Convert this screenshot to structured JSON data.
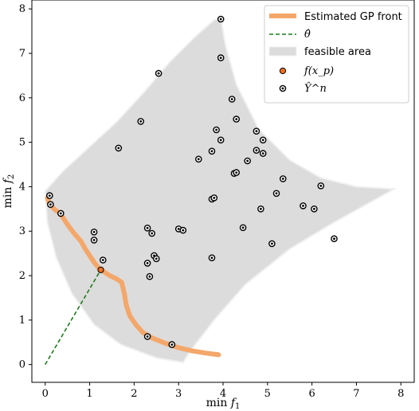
{
  "chart_data": {
    "type": "scatter",
    "xlabel": "min f_1",
    "ylabel": "min f_2",
    "xlim": [
      -0.3,
      8.3
    ],
    "ylim": [
      -0.4,
      8.2
    ],
    "x_ticks": [
      "0",
      "1",
      "2",
      "3",
      "4",
      "5",
      "6",
      "7",
      "8"
    ],
    "y_ticks": [
      "0",
      "1",
      "2",
      "3",
      "4",
      "5",
      "6",
      "7",
      "8"
    ],
    "grid": false,
    "legend_position": "top-right",
    "legend": {
      "gp_front": "Estimated GP front",
      "theta_hat": "θ̂",
      "feasible": "feasible area",
      "f_xp": "f(x_p)",
      "y_hat_n": "Ŷ^n"
    },
    "colors": {
      "gp_front": "#f4a76a",
      "theta_hat": "#1f7a1f",
      "feasible": "#dcdcdc",
      "feasible_edge": "#f0f0f0",
      "f_xp_fill": "#f07020",
      "points": "#000000"
    },
    "feasible_area": [
      [
        0.0,
        3.9
      ],
      [
        0.4,
        4.35
      ],
      [
        1.0,
        4.9
      ],
      [
        1.6,
        5.45
      ],
      [
        2.2,
        6.1
      ],
      [
        2.8,
        6.8
      ],
      [
        3.4,
        7.4
      ],
      [
        3.8,
        7.75
      ],
      [
        3.95,
        7.8
      ],
      [
        4.05,
        7.2
      ],
      [
        4.3,
        6.3
      ],
      [
        4.8,
        5.3
      ],
      [
        5.5,
        4.6
      ],
      [
        6.2,
        4.2
      ],
      [
        7.0,
        4.0
      ],
      [
        7.85,
        3.95
      ],
      [
        7.4,
        3.7
      ],
      [
        6.5,
        3.2
      ],
      [
        5.5,
        2.6
      ],
      [
        4.5,
        1.8
      ],
      [
        3.8,
        1.0
      ],
      [
        3.3,
        0.35
      ],
      [
        3.1,
        0.05
      ],
      [
        2.5,
        0.15
      ],
      [
        1.7,
        0.45
      ],
      [
        1.1,
        0.9
      ],
      [
        0.6,
        1.6
      ],
      [
        0.25,
        2.4
      ],
      [
        0.05,
        3.2
      ],
      [
        0.0,
        3.9
      ]
    ],
    "gp_front": [
      [
        0.05,
        3.75
      ],
      [
        0.1,
        3.6
      ],
      [
        0.2,
        3.5
      ],
      [
        0.35,
        3.38
      ],
      [
        0.5,
        3.15
      ],
      [
        0.65,
        2.95
      ],
      [
        0.8,
        2.78
      ],
      [
        0.9,
        2.6
      ],
      [
        1.0,
        2.45
      ],
      [
        1.1,
        2.3
      ],
      [
        1.2,
        2.18
      ],
      [
        1.3,
        2.1
      ],
      [
        1.45,
        2.0
      ],
      [
        1.6,
        1.93
      ],
      [
        1.72,
        1.85
      ],
      [
        1.78,
        1.6
      ],
      [
        1.82,
        1.35
      ],
      [
        1.9,
        1.1
      ],
      [
        2.05,
        0.88
      ],
      [
        2.2,
        0.72
      ],
      [
        2.4,
        0.6
      ],
      [
        2.7,
        0.48
      ],
      [
        3.0,
        0.38
      ],
      [
        3.3,
        0.31
      ],
      [
        3.6,
        0.26
      ],
      [
        3.9,
        0.22
      ]
    ],
    "theta_hat": [
      [
        0.0,
        0.0
      ],
      [
        1.25,
        2.13
      ]
    ],
    "f_xp": [
      1.25,
      2.13
    ],
    "y_hat_n": [
      [
        0.1,
        3.8
      ],
      [
        0.12,
        3.6
      ],
      [
        0.35,
        3.4
      ],
      [
        1.1,
        2.98
      ],
      [
        1.1,
        2.8
      ],
      [
        1.3,
        2.35
      ],
      [
        1.65,
        4.87
      ],
      [
        2.15,
        5.47
      ],
      [
        2.55,
        6.55
      ],
      [
        2.3,
        3.07
      ],
      [
        2.3,
        2.28
      ],
      [
        2.35,
        1.98
      ],
      [
        2.4,
        2.95
      ],
      [
        2.45,
        2.45
      ],
      [
        2.5,
        2.38
      ],
      [
        3.0,
        3.05
      ],
      [
        3.1,
        3.02
      ],
      [
        3.45,
        4.62
      ],
      [
        3.75,
        4.8
      ],
      [
        3.75,
        3.72
      ],
      [
        3.8,
        3.75
      ],
      [
        3.75,
        2.4
      ],
      [
        3.85,
        5.28
      ],
      [
        3.95,
        5.05
      ],
      [
        3.95,
        7.77
      ],
      [
        3.95,
        6.9
      ],
      [
        4.2,
        5.97
      ],
      [
        4.25,
        4.3
      ],
      [
        4.3,
        4.32
      ],
      [
        4.3,
        5.52
      ],
      [
        4.45,
        3.08
      ],
      [
        4.55,
        4.58
      ],
      [
        4.75,
        5.25
      ],
      [
        4.75,
        4.82
      ],
      [
        4.85,
        3.5
      ],
      [
        4.9,
        5.05
      ],
      [
        4.9,
        4.75
      ],
      [
        5.1,
        2.72
      ],
      [
        5.2,
        3.85
      ],
      [
        5.35,
        4.18
      ],
      [
        5.8,
        3.57
      ],
      [
        6.05,
        3.5
      ],
      [
        6.2,
        4.02
      ],
      [
        6.5,
        2.83
      ],
      [
        2.3,
        0.63
      ],
      [
        2.85,
        0.45
      ]
    ]
  }
}
